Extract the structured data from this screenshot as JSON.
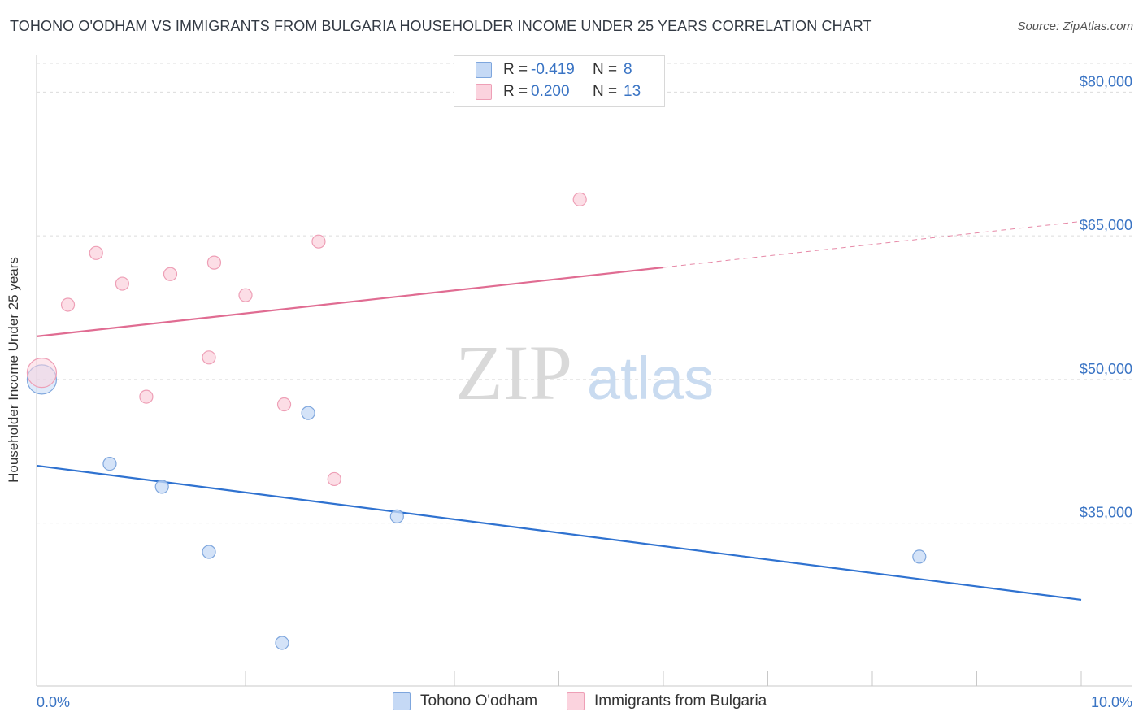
{
  "header": {
    "title": "TOHONO O'ODHAM VS IMMIGRANTS FROM BULGARIA HOUSEHOLDER INCOME UNDER 25 YEARS CORRELATION CHART",
    "source": "Source: ZipAtlas.com"
  },
  "watermark": {
    "zip": "ZIP",
    "atlas": "atlas"
  },
  "legend": {
    "series1": {
      "r_label": "R =",
      "r_value": "-0.419",
      "n_label": "N =",
      "n_value": "8"
    },
    "series2": {
      "r_label": "R =",
      "r_value": "0.200",
      "n_label": "N =",
      "n_value": "13"
    }
  },
  "chart_data": {
    "type": "scatter",
    "title": "TOHONO O'ODHAM VS IMMIGRANTS FROM BULGARIA HOUSEHOLDER INCOME UNDER 25 YEARS CORRELATION CHART",
    "xlabel": "",
    "ylabel": "Householder Income Under 25 years",
    "xlim": [
      0,
      10
    ],
    "ylim": [
      18000,
      83000
    ],
    "x_tick_labels": [
      "0.0%",
      "10.0%"
    ],
    "y_ticks": [
      35000,
      50000,
      65000,
      80000
    ],
    "y_tick_labels": [
      "$35,000",
      "$50,000",
      "$65,000",
      "$80,000"
    ],
    "grid": true,
    "legend_position": "top-center",
    "colors": {
      "tohono_fill": "#c5d9f5",
      "tohono_stroke": "#7ea6dd",
      "tohono_line": "#2f72d0",
      "bulgaria_fill": "#fbd3de",
      "bulgaria_stroke": "#ee9fb6",
      "bulgaria_line": "#e06c92",
      "tick_label": "#3a74c4"
    },
    "series": [
      {
        "name": "Tohono O'odham",
        "points": [
          {
            "x": 0.05,
            "y": 50000,
            "big": true
          },
          {
            "x": 0.7,
            "y": 41200
          },
          {
            "x": 1.2,
            "y": 38800
          },
          {
            "x": 1.65,
            "y": 32000
          },
          {
            "x": 2.35,
            "y": 22500
          },
          {
            "x": 2.6,
            "y": 46500
          },
          {
            "x": 3.45,
            "y": 35700
          },
          {
            "x": 8.45,
            "y": 31500
          }
        ],
        "trend": {
          "x0": 0,
          "y0": 41000,
          "x1": 10,
          "y1": 27000,
          "dash_from": null
        }
      },
      {
        "name": "Immigrants from Bulgaria",
        "points": [
          {
            "x": 0.05,
            "y": 50700,
            "big": true
          },
          {
            "x": 0.3,
            "y": 57800
          },
          {
            "x": 0.57,
            "y": 63200
          },
          {
            "x": 0.82,
            "y": 60000
          },
          {
            "x": 1.05,
            "y": 48200
          },
          {
            "x": 1.28,
            "y": 61000
          },
          {
            "x": 1.65,
            "y": 52300
          },
          {
            "x": 1.7,
            "y": 62200
          },
          {
            "x": 2.0,
            "y": 58800
          },
          {
            "x": 2.37,
            "y": 47400
          },
          {
            "x": 2.7,
            "y": 64400
          },
          {
            "x": 2.85,
            "y": 39600
          },
          {
            "x": 5.2,
            "y": 68800
          }
        ],
        "trend": {
          "x0": 0,
          "y0": 54500,
          "x1": 10,
          "y1": 66500,
          "dash_from": 6
        }
      }
    ]
  }
}
